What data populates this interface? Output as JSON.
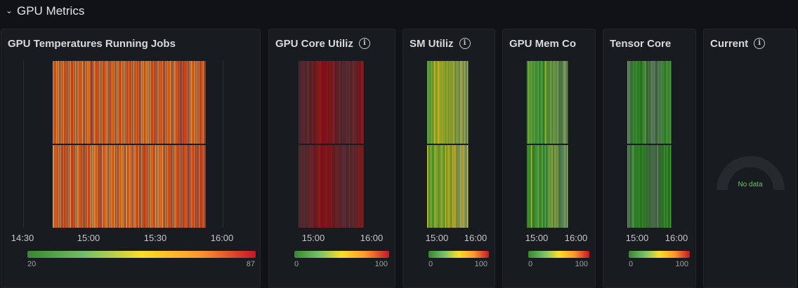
{
  "row": {
    "title": "GPU Metrics",
    "chevron_icon": "chevron-down-icon"
  },
  "colors": {
    "temperature_scale": [
      "#37872d",
      "#73bf69",
      "#fade2a",
      "#ff9830",
      "#c4162a"
    ],
    "utilization_scale": [
      "#37872d",
      "#73bf69",
      "#fade2a",
      "#ff9830",
      "#c4162a"
    ],
    "no_data_text": "#73bf69"
  },
  "panels": [
    {
      "title": "GPU Temperatures Running Jobs",
      "has_info_icon": false,
      "x_ticks": [
        "14:30",
        "15:00",
        "15:30",
        "16:00"
      ],
      "legend": {
        "min": "20",
        "max": "87"
      },
      "chart_data": {
        "type": "heatmap",
        "x_range": [
          "14:30",
          "16:00"
        ],
        "rows": 2,
        "columns": 90,
        "value_range": [
          20,
          87
        ],
        "dominant_value_range": [
          70,
          80
        ]
      }
    },
    {
      "title": "GPU Core Utiliz",
      "has_info_icon": true,
      "x_ticks": [
        "15:00",
        "16:00"
      ],
      "legend": {
        "min": "0",
        "max": "100"
      },
      "chart_data": {
        "type": "heatmap",
        "rows": 2,
        "columns": 48,
        "value_range": [
          0,
          100
        ],
        "dominant_value_range": [
          95,
          100
        ]
      }
    },
    {
      "title": "SM Utiliz",
      "has_info_icon": true,
      "x_ticks": [
        "15:00",
        "16:00"
      ],
      "legend": {
        "min": "0",
        "max": "100"
      },
      "chart_data": {
        "type": "heatmap",
        "rows": 2,
        "columns": 30,
        "value_range": [
          0,
          100
        ],
        "dominant_value_range": [
          20,
          55
        ]
      }
    },
    {
      "title": "GPU Mem Co",
      "has_info_icon": false,
      "x_ticks": [
        "15:00",
        "16:00"
      ],
      "legend": {
        "min": "0",
        "max": "100"
      },
      "chart_data": {
        "type": "heatmap",
        "rows": 2,
        "columns": 30,
        "value_range": [
          0,
          100
        ],
        "dominant_value_range": [
          10,
          40
        ]
      }
    },
    {
      "title": "Tensor Core",
      "has_info_icon": false,
      "x_ticks": [
        "15:00",
        "16:00"
      ],
      "legend": {
        "min": "0",
        "max": "100"
      },
      "chart_data": {
        "type": "heatmap",
        "rows": 2,
        "columns": 30,
        "value_range": [
          0,
          100
        ],
        "dominant_value_range": [
          0,
          20
        ]
      }
    },
    {
      "title": "Current",
      "has_info_icon": true,
      "gauge": {
        "no_data": "No data"
      }
    }
  ]
}
